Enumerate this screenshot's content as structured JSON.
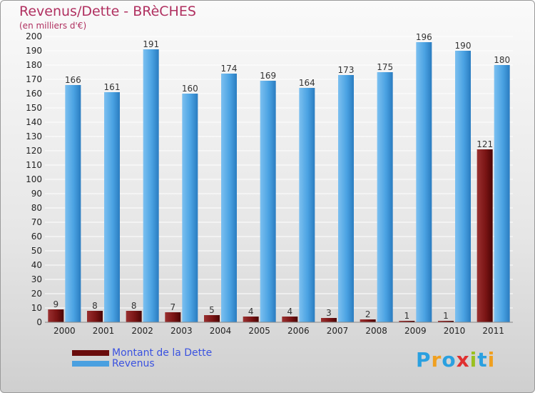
{
  "chart_data": {
    "type": "bar",
    "title": "Revenus/Dette - BRèCHES",
    "subtitle": "(en milliers d'€)",
    "categories": [
      "2000",
      "2001",
      "2002",
      "2003",
      "2004",
      "2005",
      "2006",
      "2007",
      "2008",
      "2009",
      "2010",
      "2011"
    ],
    "series": [
      {
        "name": "Montant de la Dette",
        "color": "#7a1010",
        "values": [
          9,
          8,
          8,
          7,
          5,
          4,
          4,
          3,
          2,
          1,
          1,
          121
        ]
      },
      {
        "name": "Revenus",
        "color": "#4aa0e0",
        "values": [
          166,
          161,
          191,
          160,
          174,
          169,
          164,
          173,
          175,
          196,
          190,
          180
        ]
      }
    ],
    "ylim": [
      0,
      200
    ],
    "ytick_step": 10,
    "grid": true,
    "legend": "bottom-left"
  },
  "logo": {
    "text": "Proxiti"
  }
}
